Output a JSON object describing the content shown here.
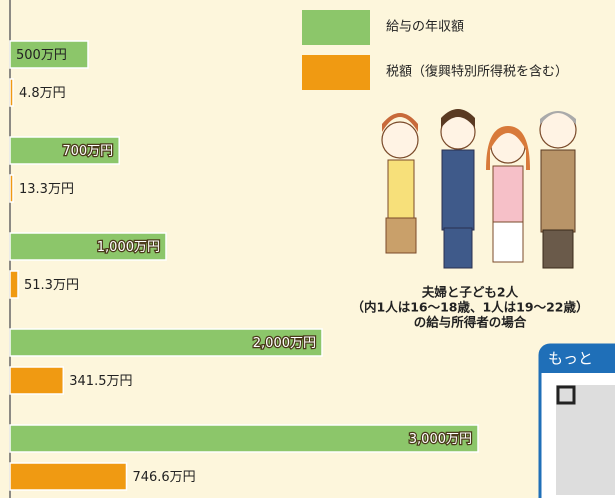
{
  "chart_data": {
    "type": "bar",
    "orientation": "horizontal",
    "categories": [
      null,
      null,
      null,
      null,
      null
    ],
    "series": [
      {
        "name": "給与の年収額",
        "color": "#8cc66a",
        "values": [
          500,
          700,
          1000,
          2000,
          3000
        ],
        "value_labels": [
          "500万円",
          "700万円",
          "1,000万円",
          "2,000万円",
          "3,000万円"
        ]
      },
      {
        "name": "税額（復興特別所得税を含む）",
        "color": "#f09a12",
        "values": [
          4.8,
          13.3,
          51.3,
          341.5,
          746.6
        ],
        "value_labels": [
          "4.8万円",
          "13.3万円",
          "51.3万円",
          "341.5万円",
          "746.6万円"
        ]
      }
    ],
    "annotations": [
      "夫婦と子ども2人",
      "（内1人は16〜18歳、1人は19〜22歳）",
      "の給与所得者の場合",
      "もっと"
    ]
  }
}
